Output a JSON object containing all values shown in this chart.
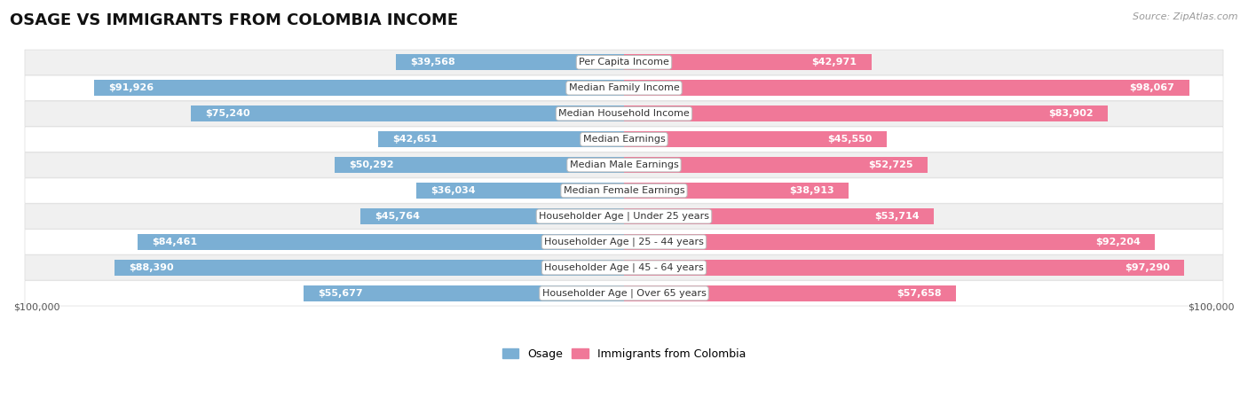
{
  "title": "OSAGE VS IMMIGRANTS FROM COLOMBIA INCOME",
  "source": "Source: ZipAtlas.com",
  "categories": [
    "Per Capita Income",
    "Median Family Income",
    "Median Household Income",
    "Median Earnings",
    "Median Male Earnings",
    "Median Female Earnings",
    "Householder Age | Under 25 years",
    "Householder Age | 25 - 44 years",
    "Householder Age | 45 - 64 years",
    "Householder Age | Over 65 years"
  ],
  "osage_values": [
    39568,
    91926,
    75240,
    42651,
    50292,
    36034,
    45764,
    84461,
    88390,
    55677
  ],
  "colombia_values": [
    42971,
    98067,
    83902,
    45550,
    52725,
    38913,
    53714,
    92204,
    97290,
    57658
  ],
  "osage_labels": [
    "$39,568",
    "$91,926",
    "$75,240",
    "$42,651",
    "$50,292",
    "$36,034",
    "$45,764",
    "$84,461",
    "$88,390",
    "$55,677"
  ],
  "colombia_labels": [
    "$42,971",
    "$98,067",
    "$83,902",
    "$45,550",
    "$52,725",
    "$38,913",
    "$53,714",
    "$92,204",
    "$97,290",
    "$57,658"
  ],
  "osage_color": "#7bafd4",
  "colombia_color": "#f07898",
  "max_value": 100000,
  "background_color": "#ffffff",
  "row_bg_light": "#f0f0f0",
  "row_bg_white": "#ffffff",
  "legend_osage": "Osage",
  "legend_colombia": "Immigrants from Colombia",
  "xlabel_left": "$100,000",
  "xlabel_right": "$100,000",
  "inside_label_threshold": 15000,
  "label_fontsize": 8,
  "cat_fontsize": 8,
  "title_fontsize": 13,
  "source_fontsize": 8
}
